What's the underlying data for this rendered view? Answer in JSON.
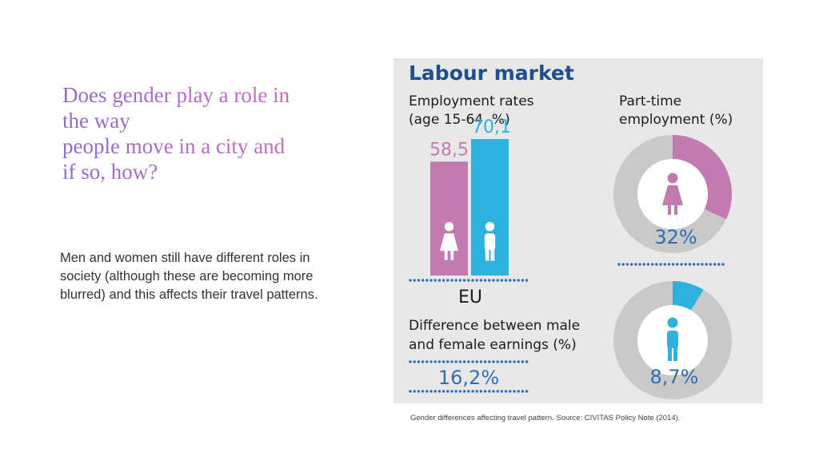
{
  "slide": {
    "title_lines": [
      "Does gender play a role in",
      "the way",
      "people move in a city and",
      "if so, how?"
    ],
    "body": "Men and women still have different roles in society (although these are becoming more blurred) and this affects their travel patterns.",
    "caption": "Gender differences affecting travel pattern. Source: CIVITAS Policy Note (2014)."
  },
  "colors": {
    "female": "#c27bb0",
    "male": "#2db2e0",
    "heading": "#1f4e8c",
    "donut_bg": "#c9c9c9",
    "dots": "#2f6fb0"
  },
  "chart_data": [
    {
      "type": "bar",
      "title": "Labour market",
      "subtitle_lines": [
        "Employment rates",
        "(age 15-64, %)"
      ],
      "categories": [
        "female-icon",
        "male-icon"
      ],
      "values": [
        58.5,
        70.1
      ],
      "value_labels": [
        "58,5",
        "70,1"
      ],
      "region_label": "EU"
    },
    {
      "type": "pie",
      "title_lines": [
        "Part-time",
        "employment (%)"
      ],
      "slices": [
        {
          "icon": "female-icon",
          "value": 32,
          "label": "32%"
        },
        {
          "icon": "male-icon",
          "value": 8.7,
          "label": "8,7%"
        }
      ]
    },
    {
      "type": "table",
      "title_lines": [
        "Difference between male",
        "and female earnings (%)"
      ],
      "value": 16.2,
      "value_label": "16,2%"
    }
  ]
}
